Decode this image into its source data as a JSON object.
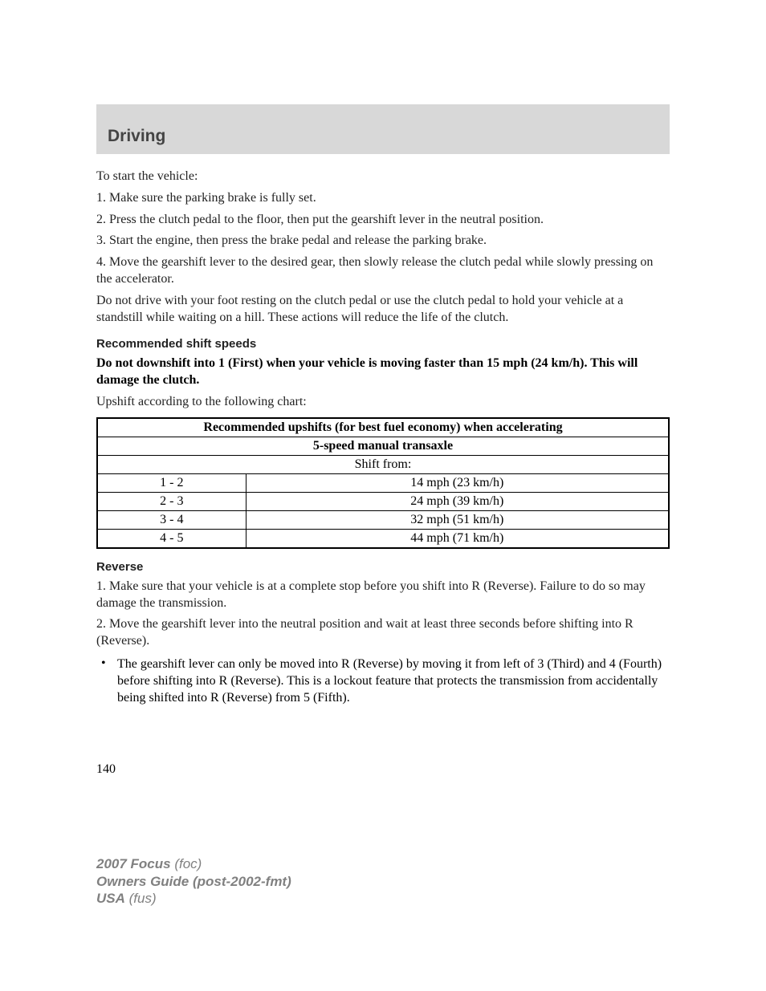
{
  "header": {
    "section_title": "Driving"
  },
  "intro": "To start the vehicle:",
  "steps": {
    "s1": "1. Make sure the parking brake is fully set.",
    "s2": "2. Press the clutch pedal to the floor, then put the gearshift lever in the neutral position.",
    "s3": "3. Start the engine, then press the brake pedal and release the parking brake.",
    "s4": "4. Move the gearshift lever to the desired gear, then slowly release the clutch pedal while slowly pressing on the accelerator."
  },
  "warning_clutch": "Do not drive with your foot resting on the clutch pedal or use the clutch pedal to hold your vehicle at a standstill while waiting on a hill. These actions will reduce the life of the clutch.",
  "subheading1": "Recommended shift speeds",
  "bold_warning": "Do not downshift into 1 (First) when your vehicle is moving faster than 15 mph (24 km/h). This will damage the clutch.",
  "chart_intro": "Upshift according to the following chart:",
  "table": {
    "title": "Recommended upshifts (for best fuel economy) when accelerating",
    "subtitle": "5-speed manual transaxle",
    "col_header": "Shift from:",
    "rows": [
      {
        "gear": "1 - 2",
        "speed": "14 mph (23 km/h)"
      },
      {
        "gear": "2 - 3",
        "speed": "24 mph (39 km/h)"
      },
      {
        "gear": "3 - 4",
        "speed": "32 mph (51 km/h)"
      },
      {
        "gear": "4 - 5",
        "speed": "44 mph (71 km/h)"
      }
    ]
  },
  "subheading2": "Reverse",
  "reverse": {
    "r1": "1. Make sure that your vehicle is at a complete stop before you shift into R (Reverse). Failure to do so may damage the transmission.",
    "r2": "2. Move the gearshift lever into the neutral position and wait at least three seconds before shifting into R (Reverse).",
    "bullet": "The gearshift lever can only be moved into R (Reverse) by moving it from left of 3 (Third) and 4 (Fourth) before shifting into R (Reverse). This is a lockout feature that protects the transmission from accidentally being shifted into R (Reverse) from 5 (Fifth)."
  },
  "page_number": "140",
  "footer": {
    "line1_bold": "2007 Focus",
    "line1_ital": "(foc)",
    "line2_bold": "Owners Guide (post-2002-fmt)",
    "line3_bold": "USA",
    "line3_ital": "(fus)"
  },
  "colors": {
    "header_bg": "#d8d8d8",
    "text": "#222222",
    "footer_text": "#808080"
  }
}
